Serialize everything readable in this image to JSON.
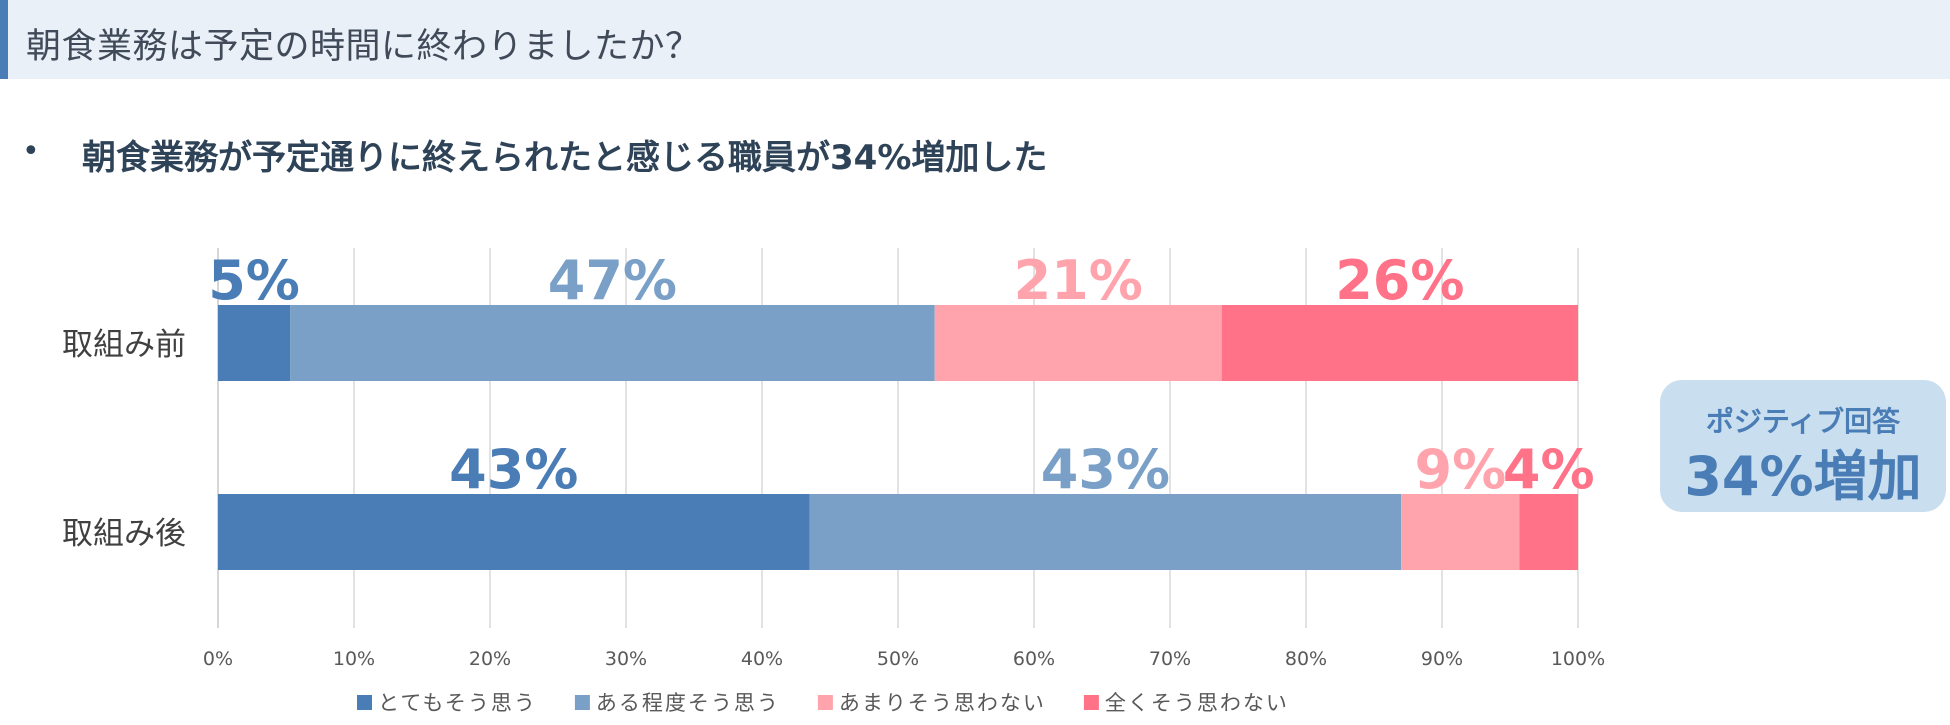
{
  "title": "朝食業務は予定の時間に終わりましたか？",
  "summary": {
    "bullet": "•",
    "text": "朝食業務が予定通りに終えられたと感じる職員が34%増加した"
  },
  "callout": {
    "line1": "ポジティブ回答",
    "line2": "34%増加"
  },
  "chart_data": {
    "type": "bar",
    "orientation": "horizontal",
    "stacked": true,
    "categories": [
      "取組み前",
      "取組み後"
    ],
    "series": [
      {
        "name": "とてもそう思う",
        "color": "#4a7db5",
        "values": [
          5.3,
          43.5
        ],
        "labels": [
          "5%",
          "43%"
        ]
      },
      {
        "name": "ある程度そう思う",
        "color": "#7aa0c8",
        "values": [
          47.4,
          43.5
        ],
        "labels": [
          "47%",
          "43%"
        ]
      },
      {
        "name": "あまりそう思わない",
        "color": "#ffa4ad",
        "values": [
          21.1,
          8.7
        ],
        "labels": [
          "21%",
          "9%"
        ]
      },
      {
        "name": "全くそう思わない",
        "color": "#ff7288",
        "values": [
          26.2,
          4.3
        ],
        "labels": [
          "26%",
          "4%"
        ]
      }
    ],
    "xlim": [
      0,
      100
    ],
    "xticks": [
      "0%",
      "10%",
      "20%",
      "30%",
      "40%",
      "50%",
      "60%",
      "70%",
      "80%",
      "90%",
      "100%"
    ],
    "grid": true,
    "legend_position": "bottom"
  }
}
